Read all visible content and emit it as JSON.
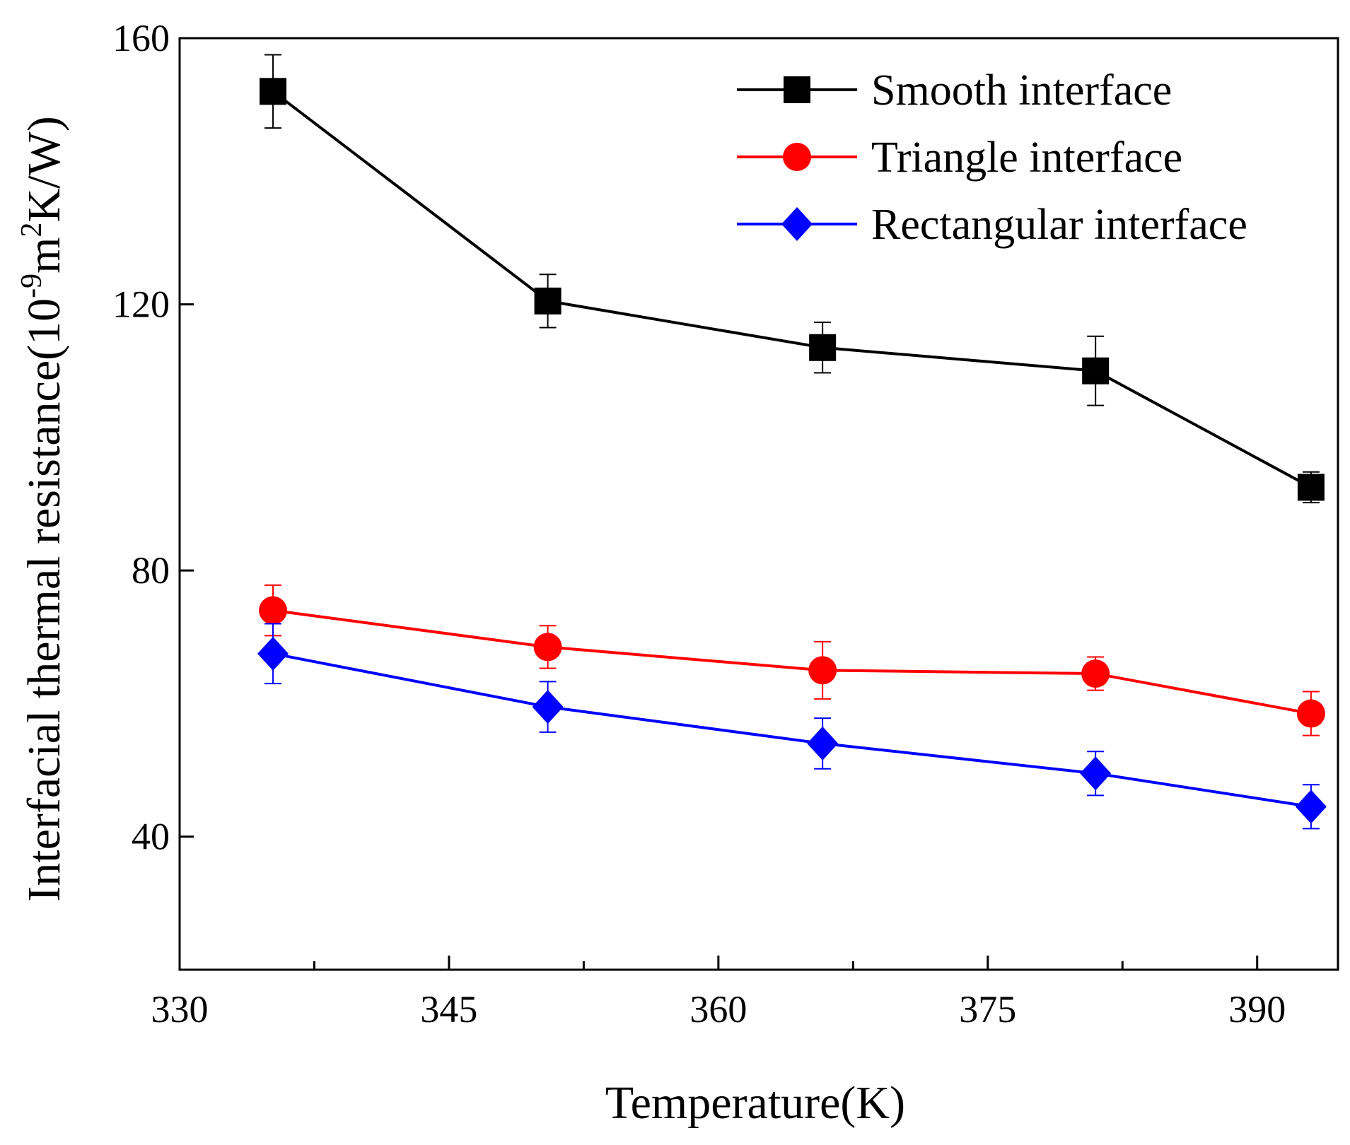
{
  "chart_data": {
    "type": "line",
    "xlabel": "Temperature(K)",
    "ylabel": {
      "main": "Interfacial thermal resistance(10",
      "exp1": "-9",
      "mid": "m",
      "exp2": "2",
      "tail": "K/W)"
    },
    "xlim": [
      330,
      394.5
    ],
    "ylim": [
      20,
      160
    ],
    "xticks": [
      330,
      345,
      360,
      375,
      390
    ],
    "xminor_ticks": [
      337.5,
      352.5,
      367.5,
      382.5
    ],
    "yticks": [
      40,
      80,
      120,
      160
    ],
    "x": [
      335.2,
      350.5,
      365.8,
      381.0,
      393.0
    ],
    "series": [
      {
        "name": "Smooth interface",
        "marker": "square",
        "color": "#000000",
        "values": [
          152,
          120.5,
          113.5,
          110,
          92.5
        ],
        "errors": [
          5.5,
          4,
          3.8,
          5.2,
          2.3
        ]
      },
      {
        "name": "Triangle interface",
        "marker": "circle",
        "color": "#ff0000",
        "values": [
          74,
          68.5,
          65,
          64.5,
          58.5
        ],
        "errors": [
          3.8,
          3.2,
          4.3,
          2.5,
          3.3
        ]
      },
      {
        "name": "Rectangular interface",
        "marker": "diamond",
        "color": "#0000ff",
        "values": [
          67.5,
          59.5,
          54,
          49.5,
          44.5
        ],
        "errors": [
          4.5,
          3.8,
          3.8,
          3.3,
          3.3
        ]
      }
    ],
    "legend_position": "top-right"
  }
}
